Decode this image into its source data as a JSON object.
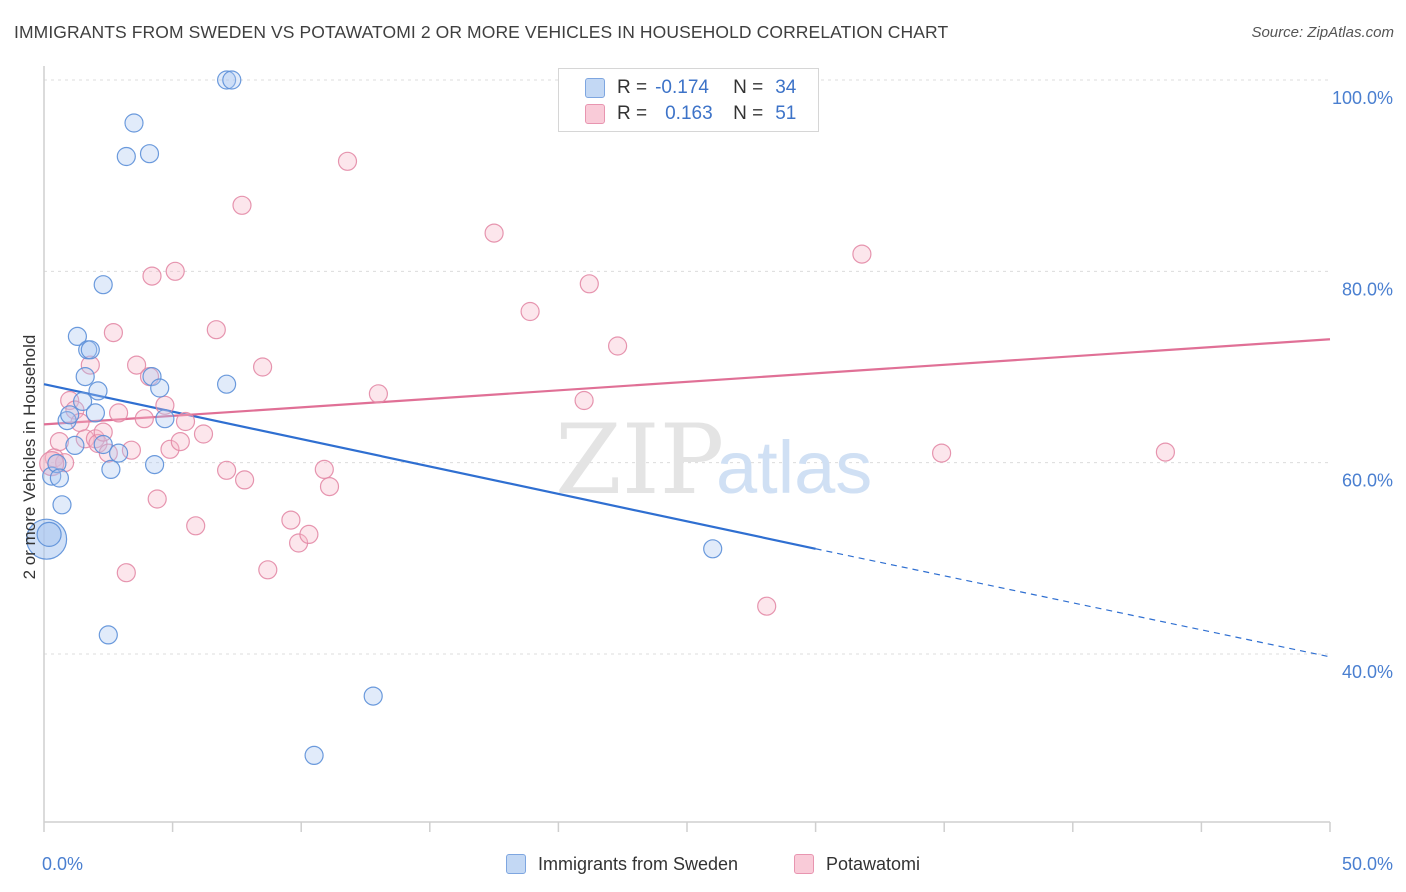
{
  "title": "IMMIGRANTS FROM SWEDEN VS POTAWATOMI 2 OR MORE VEHICLES IN HOUSEHOLD CORRELATION CHART",
  "source": "Source: ZipAtlas.com",
  "watermark": {
    "zip": "ZIP",
    "atlas": "atlas"
  },
  "legend": {
    "rows": [
      {
        "r_label": "R =",
        "r_value": "-0.174",
        "n_label": "N =",
        "n_value": "34",
        "color": "#a9c7f0"
      },
      {
        "r_label": "R =",
        "r_value": "0.163",
        "n_label": "N =",
        "n_value": "51",
        "color": "#f5b6c8"
      }
    ]
  },
  "bottom_legend": {
    "items": [
      {
        "label": "Immigrants from Sweden",
        "color": "#a9c7f0"
      },
      {
        "label": "Potawatomi",
        "color": "#f5b6c8"
      }
    ]
  },
  "chart_data": {
    "type": "scatter",
    "title": "IMMIGRANTS FROM SWEDEN VS POTAWATOMI 2 OR MORE VEHICLES IN HOUSEHOLD CORRELATION CHART",
    "xlabel": "",
    "ylabel": "2 or more Vehicles in Household",
    "xlim": [
      0,
      50
    ],
    "ylim": [
      20,
      102
    ],
    "x_tick_labels": [
      "0.0%",
      "50.0%"
    ],
    "y_ticks": [
      40,
      60,
      80,
      100
    ],
    "y_tick_labels": [
      "40.0%",
      "60.0%",
      "80.0%",
      "100.0%"
    ],
    "grid": true,
    "series": [
      {
        "name": "Immigrants from Sweden",
        "color": "#a9c7f0",
        "stroke": "#5b8fd8",
        "trend_color": "#2f6fd1",
        "trend": {
          "x0": 0,
          "y0": 68.2,
          "x1": 30,
          "y1": 51.0,
          "dashed_to_x": 50,
          "dashed_to_y": 39.7
        },
        "points": [
          [
            0.1,
            52.0
          ],
          [
            0.3,
            58.6
          ],
          [
            0.5,
            59.9
          ],
          [
            0.6,
            58.4
          ],
          [
            0.7,
            55.6
          ],
          [
            0.9,
            64.4
          ],
          [
            1.0,
            65.0
          ],
          [
            1.2,
            61.8
          ],
          [
            1.3,
            73.2
          ],
          [
            1.5,
            66.4
          ],
          [
            1.6,
            69.0
          ],
          [
            1.7,
            71.8
          ],
          [
            1.8,
            71.8
          ],
          [
            2.0,
            65.2
          ],
          [
            2.1,
            67.5
          ],
          [
            2.3,
            61.9
          ],
          [
            2.3,
            78.6
          ],
          [
            2.5,
            42.0
          ],
          [
            2.6,
            59.3
          ],
          [
            2.9,
            61.0
          ],
          [
            3.2,
            92.0
          ],
          [
            3.5,
            95.5
          ],
          [
            4.1,
            92.3
          ],
          [
            4.2,
            69.0
          ],
          [
            4.3,
            59.8
          ],
          [
            4.5,
            67.8
          ],
          [
            4.7,
            64.6
          ],
          [
            7.1,
            68.2
          ],
          [
            7.1,
            100.0
          ],
          [
            7.3,
            100.0
          ],
          [
            10.5,
            29.4
          ],
          [
            12.8,
            35.6
          ],
          [
            26.0,
            51.0
          ],
          [
            0.2,
            52.5
          ]
        ],
        "sizes": [
          3,
          1,
          1,
          1,
          1,
          1,
          1,
          1,
          1,
          1,
          1,
          1,
          1,
          1,
          1,
          1,
          1,
          1,
          1,
          1,
          1,
          1,
          1,
          1,
          1,
          1,
          1,
          1,
          1,
          1,
          1,
          1,
          1,
          2
        ]
      },
      {
        "name": "Potawatomi",
        "color": "#f5b6c8",
        "stroke": "#e38aa6",
        "trend_color": "#e07096",
        "trend": {
          "x0": 0,
          "y0": 64.0,
          "x1": 50,
          "y1": 72.9
        },
        "points": [
          [
            0.4,
            60.5
          ],
          [
            0.6,
            62.2
          ],
          [
            0.8,
            60.0
          ],
          [
            1.0,
            66.5
          ],
          [
            1.2,
            65.5
          ],
          [
            1.4,
            64.2
          ],
          [
            1.6,
            62.5
          ],
          [
            1.8,
            70.2
          ],
          [
            2.0,
            62.5
          ],
          [
            2.1,
            62.0
          ],
          [
            2.3,
            63.2
          ],
          [
            2.5,
            61.0
          ],
          [
            2.7,
            73.6
          ],
          [
            2.9,
            65.2
          ],
          [
            3.2,
            48.5
          ],
          [
            3.4,
            61.3
          ],
          [
            3.6,
            70.2
          ],
          [
            3.9,
            64.6
          ],
          [
            4.1,
            69.0
          ],
          [
            4.2,
            79.5
          ],
          [
            4.4,
            56.2
          ],
          [
            4.7,
            66.0
          ],
          [
            4.9,
            61.4
          ],
          [
            5.1,
            80.0
          ],
          [
            5.3,
            62.2
          ],
          [
            5.5,
            64.3
          ],
          [
            5.9,
            53.4
          ],
          [
            6.2,
            63.0
          ],
          [
            6.7,
            73.9
          ],
          [
            7.1,
            59.2
          ],
          [
            7.7,
            86.9
          ],
          [
            7.8,
            58.2
          ],
          [
            8.5,
            70.0
          ],
          [
            8.7,
            48.8
          ],
          [
            9.6,
            54.0
          ],
          [
            9.9,
            51.6
          ],
          [
            10.3,
            52.5
          ],
          [
            10.9,
            59.3
          ],
          [
            11.1,
            57.5
          ],
          [
            11.8,
            91.5
          ],
          [
            13.0,
            67.2
          ],
          [
            17.5,
            84.0
          ],
          [
            18.9,
            75.8
          ],
          [
            21.0,
            66.5
          ],
          [
            21.2,
            78.7
          ],
          [
            22.3,
            72.2
          ],
          [
            28.1,
            45.0
          ],
          [
            31.8,
            81.8
          ],
          [
            34.9,
            61.0
          ],
          [
            43.6,
            61.1
          ],
          [
            0.3,
            59.9
          ]
        ],
        "sizes": [
          1,
          1,
          1,
          1,
          1,
          1,
          1,
          1,
          1,
          1,
          1,
          1,
          1,
          1,
          1,
          1,
          1,
          1,
          1,
          1,
          1,
          1,
          1,
          1,
          1,
          1,
          1,
          1,
          1,
          1,
          1,
          1,
          1,
          1,
          1,
          1,
          1,
          1,
          1,
          1,
          1,
          1,
          1,
          1,
          1,
          1,
          1,
          1,
          1,
          1,
          2
        ]
      }
    ]
  }
}
